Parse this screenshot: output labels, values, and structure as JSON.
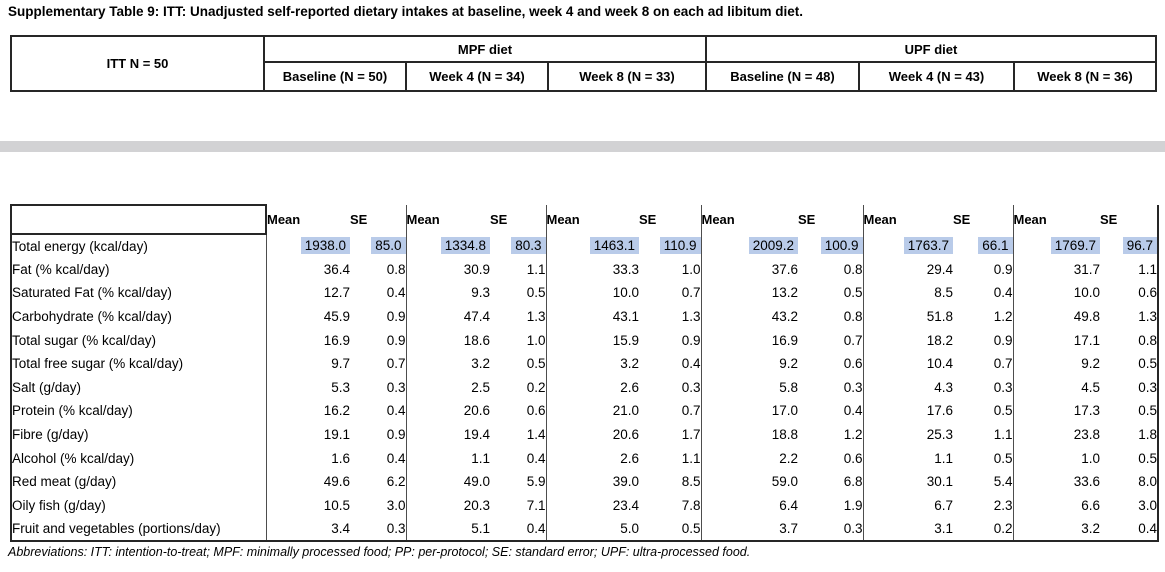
{
  "title": "Supplementary Table 9: ITT: Unadjusted self-reported dietary intakes at baseline, week 4 and week 8 on each ad libitum diet.",
  "colors": {
    "highlight": "#b9cbe9",
    "gray_bar": "#d2d2d4",
    "border": "#262626"
  },
  "header_table": {
    "itt_label": "ITT N = 50",
    "diet_groups": [
      {
        "label": "MPF diet",
        "columns": [
          "Baseline (N = 50)",
          "Week 4 (N = 34)",
          "Week 8 (N = 33)"
        ]
      },
      {
        "label": "UPF diet",
        "columns": [
          "Baseline (N = 48)",
          "Week 4 (N = 43)",
          "Week 8 (N = 36)"
        ]
      }
    ]
  },
  "main_table": {
    "mean_label": "Mean",
    "se_label": "SE",
    "group_count": 6,
    "rows": [
      {
        "label": "Total energy (kcal/day)",
        "highlighted": true,
        "values": [
          "1938.0",
          "85.0",
          "1334.8",
          "80.3",
          "1463.1",
          "110.9",
          "2009.2",
          "100.9",
          "1763.7",
          "66.1",
          "1769.7",
          "96.7"
        ]
      },
      {
        "label": "Fat (% kcal/day)",
        "highlighted": false,
        "values": [
          "36.4",
          "0.8",
          "30.9",
          "1.1",
          "33.3",
          "1.0",
          "37.6",
          "0.8",
          "29.4",
          "0.9",
          "31.7",
          "1.1"
        ]
      },
      {
        "label": "Saturated Fat (% kcal/day)",
        "highlighted": false,
        "values": [
          "12.7",
          "0.4",
          "9.3",
          "0.5",
          "10.0",
          "0.7",
          "13.2",
          "0.5",
          "8.5",
          "0.4",
          "10.0",
          "0.6"
        ]
      },
      {
        "label": "Carbohydrate (% kcal/day)",
        "highlighted": false,
        "values": [
          "45.9",
          "0.9",
          "47.4",
          "1.3",
          "43.1",
          "1.3",
          "43.2",
          "0.8",
          "51.8",
          "1.2",
          "49.8",
          "1.3"
        ]
      },
      {
        "label": "Total sugar (% kcal/day)",
        "highlighted": false,
        "values": [
          "16.9",
          "0.9",
          "18.6",
          "1.0",
          "15.9",
          "0.9",
          "16.9",
          "0.7",
          "18.2",
          "0.9",
          "17.1",
          "0.8"
        ]
      },
      {
        "label": "Total free sugar (% kcal/day)",
        "highlighted": false,
        "values": [
          "9.7",
          "0.7",
          "3.2",
          "0.5",
          "3.2",
          "0.4",
          "9.2",
          "0.6",
          "10.4",
          "0.7",
          "9.2",
          "0.5"
        ]
      },
      {
        "label": "Salt (g/day)",
        "highlighted": false,
        "values": [
          "5.3",
          "0.3",
          "2.5",
          "0.2",
          "2.6",
          "0.3",
          "5.8",
          "0.3",
          "4.3",
          "0.3",
          "4.5",
          "0.3"
        ]
      },
      {
        "label": "Protein (% kcal/day)",
        "highlighted": false,
        "values": [
          "16.2",
          "0.4",
          "20.6",
          "0.6",
          "21.0",
          "0.7",
          "17.0",
          "0.4",
          "17.6",
          "0.5",
          "17.3",
          "0.5"
        ]
      },
      {
        "label": "Fibre (g/day)",
        "highlighted": false,
        "values": [
          "19.1",
          "0.9",
          "19.4",
          "1.4",
          "20.6",
          "1.7",
          "18.8",
          "1.2",
          "25.3",
          "1.1",
          "23.8",
          "1.8"
        ]
      },
      {
        "label": "Alcohol (% kcal/day)",
        "highlighted": false,
        "values": [
          "1.6",
          "0.4",
          "1.1",
          "0.4",
          "2.6",
          "1.1",
          "2.2",
          "0.6",
          "1.1",
          "0.5",
          "1.0",
          "0.5"
        ]
      },
      {
        "label": "Red meat (g/day)",
        "highlighted": false,
        "values": [
          "49.6",
          "6.2",
          "49.0",
          "5.9",
          "39.0",
          "8.5",
          "59.0",
          "6.8",
          "30.1",
          "5.4",
          "33.6",
          "8.0"
        ]
      },
      {
        "label": "Oily fish (g/day)",
        "highlighted": false,
        "values": [
          "10.5",
          "3.0",
          "20.3",
          "7.1",
          "23.4",
          "7.8",
          "6.4",
          "1.9",
          "6.7",
          "2.3",
          "6.6",
          "3.0"
        ]
      },
      {
        "label": "Fruit and vegetables (portions/day)",
        "highlighted": false,
        "values": [
          "3.4",
          "0.3",
          "5.1",
          "0.4",
          "5.0",
          "0.5",
          "3.7",
          "0.3",
          "3.1",
          "0.2",
          "3.2",
          "0.4"
        ]
      }
    ]
  },
  "footer": "Abbreviations: ITT: intention-to-treat; MPF: minimally processed food; PP: per-protocol; SE: standard error; UPF: ultra-processed food."
}
